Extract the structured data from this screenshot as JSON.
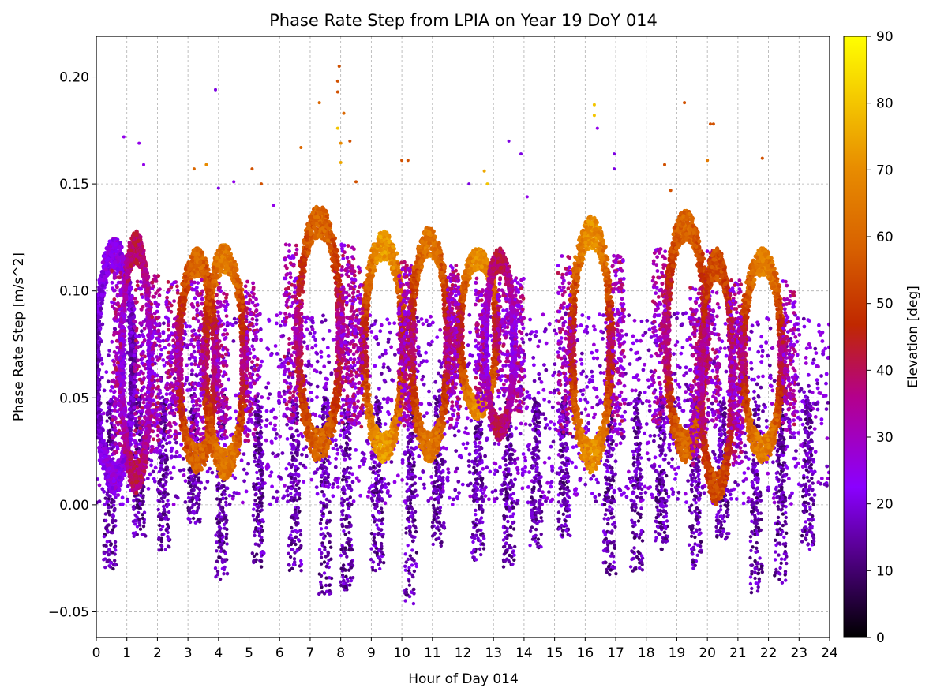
{
  "chart_data": {
    "type": "scatter",
    "title": "Phase Rate Step from LPIA on Year 19 DoY 014",
    "xlabel": "Hour of Day 014",
    "ylabel": "Phase Rate Step [m/s^2]",
    "xlim": [
      0,
      24
    ],
    "ylim": [
      -0.062,
      0.219
    ],
    "x_ticks": [
      "0",
      "1",
      "2",
      "3",
      "4",
      "5",
      "6",
      "7",
      "8",
      "9",
      "10",
      "11",
      "12",
      "13",
      "14",
      "15",
      "16",
      "17",
      "18",
      "19",
      "20",
      "21",
      "22",
      "23",
      "24"
    ],
    "y_ticks": [
      {
        "value": -0.05,
        "label": "−0.05"
      },
      {
        "value": 0.0,
        "label": "0.00"
      },
      {
        "value": 0.05,
        "label": "0.05"
      },
      {
        "value": 0.1,
        "label": "0.10"
      },
      {
        "value": 0.15,
        "label": "0.15"
      },
      {
        "value": 0.2,
        "label": "0.20"
      }
    ],
    "grid": true,
    "colorbar": {
      "label": "Elevation [deg]",
      "range": [
        0,
        90
      ],
      "ticks": [
        "0",
        "10",
        "20",
        "30",
        "40",
        "50",
        "60",
        "70",
        "80",
        "90"
      ],
      "colormap": "gnuplot",
      "colors": [
        "#000000",
        "#5a0096",
        "#8a00ff",
        "#b4008c",
        "#c02800",
        "#d86200",
        "#e88c00",
        "#ffff00"
      ]
    },
    "arcs_description": "approximate satellite pass arcs (hour center, half-width hours, low y, high y, peak elevation deg)",
    "arcs": [
      {
        "center": 0.6,
        "half_width": 0.7,
        "y_low": 0.005,
        "y_high": 0.125,
        "elev": 25
      },
      {
        "center": 1.3,
        "half_width": 0.55,
        "y_low": 0.005,
        "y_high": 0.128,
        "elev": 40
      },
      {
        "center": 3.3,
        "half_width": 0.7,
        "y_low": 0.015,
        "y_high": 0.12,
        "elev": 60
      },
      {
        "center": 4.2,
        "half_width": 0.75,
        "y_low": 0.012,
        "y_high": 0.122,
        "elev": 65
      },
      {
        "center": 7.3,
        "half_width": 0.8,
        "y_low": 0.02,
        "y_high": 0.14,
        "elev": 60
      },
      {
        "center": 9.4,
        "half_width": 0.75,
        "y_low": 0.02,
        "y_high": 0.128,
        "elev": 72
      },
      {
        "center": 10.9,
        "half_width": 0.7,
        "y_low": 0.02,
        "y_high": 0.13,
        "elev": 64
      },
      {
        "center": 12.5,
        "half_width": 0.7,
        "y_low": 0.04,
        "y_high": 0.12,
        "elev": 70
      },
      {
        "center": 13.2,
        "half_width": 0.55,
        "y_low": 0.03,
        "y_high": 0.12,
        "elev": 40
      },
      {
        "center": 16.2,
        "half_width": 0.75,
        "y_low": 0.015,
        "y_high": 0.135,
        "elev": 70
      },
      {
        "center": 19.3,
        "half_width": 0.75,
        "y_low": 0.02,
        "y_high": 0.138,
        "elev": 60
      },
      {
        "center": 20.3,
        "half_width": 0.6,
        "y_low": 0.0,
        "y_high": 0.12,
        "elev": 55
      },
      {
        "center": 21.8,
        "half_width": 0.75,
        "y_low": 0.02,
        "y_high": 0.12,
        "elev": 66
      }
    ],
    "low_lobes": [
      {
        "center": 0.45,
        "y_min": -0.03
      },
      {
        "center": 1.4,
        "y_min": -0.015
      },
      {
        "center": 2.2,
        "y_min": -0.02
      },
      {
        "center": 3.2,
        "y_min": -0.008
      },
      {
        "center": 4.1,
        "y_min": -0.035
      },
      {
        "center": 5.3,
        "y_min": -0.028
      },
      {
        "center": 6.5,
        "y_min": -0.03
      },
      {
        "center": 7.5,
        "y_min": -0.042
      },
      {
        "center": 8.2,
        "y_min": -0.04
      },
      {
        "center": 9.2,
        "y_min": -0.03
      },
      {
        "center": 10.3,
        "y_min": -0.045
      },
      {
        "center": 11.2,
        "y_min": -0.02
      },
      {
        "center": 12.5,
        "y_min": -0.025
      },
      {
        "center": 13.5,
        "y_min": -0.03
      },
      {
        "center": 14.4,
        "y_min": -0.02
      },
      {
        "center": 15.3,
        "y_min": -0.015
      },
      {
        "center": 16.8,
        "y_min": -0.032
      },
      {
        "center": 17.7,
        "y_min": -0.03
      },
      {
        "center": 18.5,
        "y_min": -0.02
      },
      {
        "center": 19.6,
        "y_min": -0.028
      },
      {
        "center": 20.5,
        "y_min": -0.015
      },
      {
        "center": 21.6,
        "y_min": -0.04
      },
      {
        "center": 22.4,
        "y_min": -0.035
      },
      {
        "center": 23.3,
        "y_min": -0.02
      }
    ],
    "outliers": [
      {
        "x": 0.9,
        "y": 0.172,
        "elev": 25
      },
      {
        "x": 1.4,
        "y": 0.169,
        "elev": 25
      },
      {
        "x": 1.55,
        "y": 0.159,
        "elev": 25
      },
      {
        "x": 3.9,
        "y": 0.194,
        "elev": 20
      },
      {
        "x": 3.2,
        "y": 0.157,
        "elev": 60
      },
      {
        "x": 3.6,
        "y": 0.159,
        "elev": 70
      },
      {
        "x": 4.0,
        "y": 0.148,
        "elev": 20
      },
      {
        "x": 4.5,
        "y": 0.151,
        "elev": 25
      },
      {
        "x": 5.1,
        "y": 0.157,
        "elev": 55
      },
      {
        "x": 5.4,
        "y": 0.15,
        "elev": 55
      },
      {
        "x": 5.8,
        "y": 0.14,
        "elev": 25
      },
      {
        "x": 6.7,
        "y": 0.167,
        "elev": 60
      },
      {
        "x": 7.3,
        "y": 0.188,
        "elev": 60
      },
      {
        "x": 7.95,
        "y": 0.205,
        "elev": 55
      },
      {
        "x": 7.9,
        "y": 0.198,
        "elev": 55
      },
      {
        "x": 7.9,
        "y": 0.193,
        "elev": 55
      },
      {
        "x": 8.1,
        "y": 0.183,
        "elev": 60
      },
      {
        "x": 7.9,
        "y": 0.176,
        "elev": 80
      },
      {
        "x": 8.3,
        "y": 0.17,
        "elev": 55
      },
      {
        "x": 8.0,
        "y": 0.169,
        "elev": 70
      },
      {
        "x": 8.0,
        "y": 0.16,
        "elev": 75
      },
      {
        "x": 8.5,
        "y": 0.151,
        "elev": 55
      },
      {
        "x": 10.0,
        "y": 0.161,
        "elev": 55
      },
      {
        "x": 10.2,
        "y": 0.161,
        "elev": 55
      },
      {
        "x": 12.2,
        "y": 0.15,
        "elev": 20
      },
      {
        "x": 12.7,
        "y": 0.156,
        "elev": 75
      },
      {
        "x": 12.8,
        "y": 0.15,
        "elev": 80
      },
      {
        "x": 13.5,
        "y": 0.17,
        "elev": 20
      },
      {
        "x": 13.9,
        "y": 0.164,
        "elev": 20
      },
      {
        "x": 14.1,
        "y": 0.144,
        "elev": 25
      },
      {
        "x": 16.3,
        "y": 0.187,
        "elev": 80
      },
      {
        "x": 16.3,
        "y": 0.182,
        "elev": 80
      },
      {
        "x": 16.4,
        "y": 0.176,
        "elev": 25
      },
      {
        "x": 16.95,
        "y": 0.164,
        "elev": 20
      },
      {
        "x": 16.95,
        "y": 0.157,
        "elev": 20
      },
      {
        "x": 18.6,
        "y": 0.159,
        "elev": 55
      },
      {
        "x": 19.25,
        "y": 0.188,
        "elev": 55
      },
      {
        "x": 20.1,
        "y": 0.178,
        "elev": 55
      },
      {
        "x": 20.2,
        "y": 0.178,
        "elev": 55
      },
      {
        "x": 20.0,
        "y": 0.161,
        "elev": 65
      },
      {
        "x": 21.8,
        "y": 0.162,
        "elev": 55
      },
      {
        "x": 18.8,
        "y": 0.147,
        "elev": 55
      }
    ]
  }
}
